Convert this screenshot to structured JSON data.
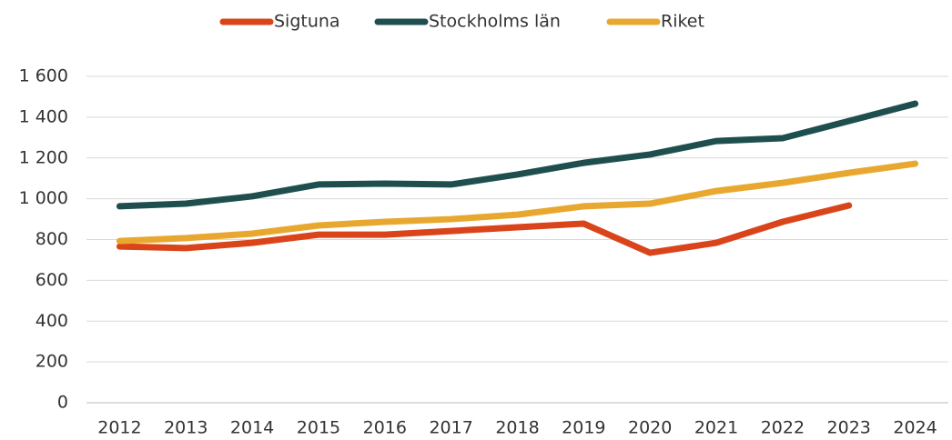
{
  "chart_data": {
    "type": "line",
    "categories": [
      "2012",
      "2013",
      "2014",
      "2015",
      "2016",
      "2017",
      "2018",
      "2019",
      "2020",
      "2021",
      "2022",
      "2023",
      "2024"
    ],
    "series": [
      {
        "name": "Sigtuna",
        "color": "#d9441a",
        "values": [
          766,
          758,
          784,
          824,
          824,
          842,
          860,
          878,
          735,
          784,
          887,
          967,
          null
        ]
      },
      {
        "name": "Stockholms län",
        "color": "#1f4e4f",
        "values": [
          963,
          976,
          1012,
          1070,
          1074,
          1070,
          1119,
          1176,
          1217,
          1283,
          1297,
          1381,
          1466
        ]
      },
      {
        "name": "Riket",
        "color": "#e8a830",
        "values": [
          793,
          807,
          829,
          869,
          887,
          900,
          922,
          963,
          976,
          1038,
          1078,
          1127,
          1172
        ]
      }
    ],
    "ylim": [
      0,
      1600
    ],
    "yticks": [
      0,
      200,
      400,
      600,
      800,
      {
        "value": 1000,
        "label": "1 000"
      },
      {
        "value": 1200,
        "label": "1 200"
      },
      {
        "value": 1400,
        "label": "1 400"
      },
      {
        "value": 1600,
        "label": "1 600"
      }
    ],
    "grid": true,
    "legend": "top"
  }
}
